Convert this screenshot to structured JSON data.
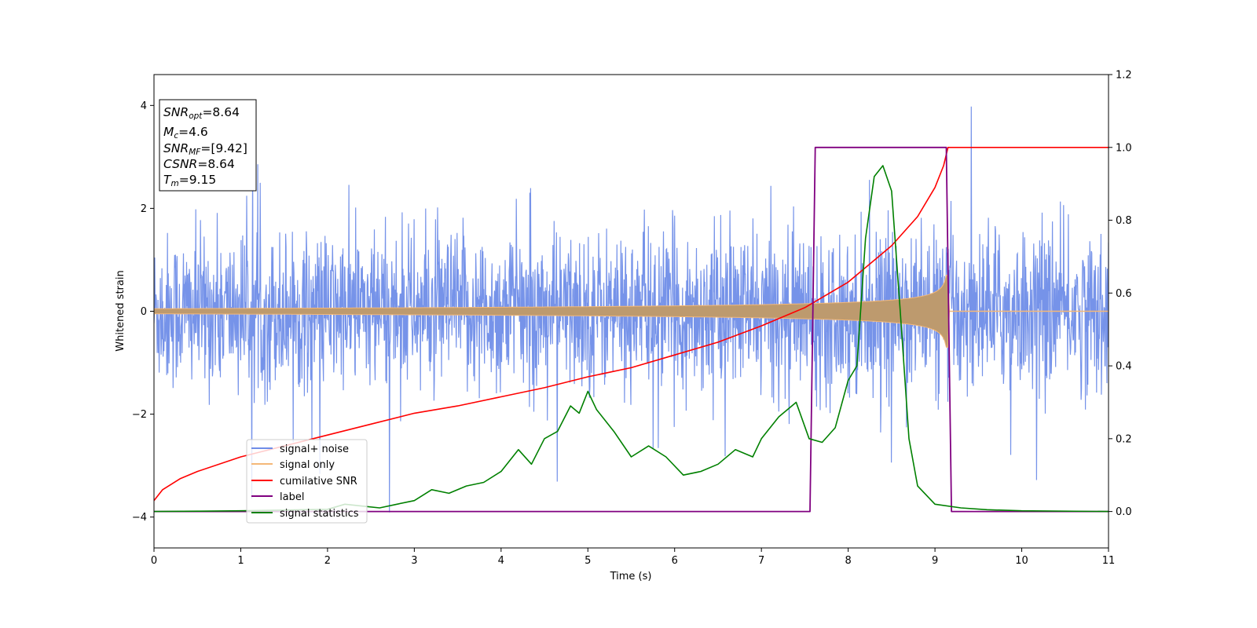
{
  "chart_data": {
    "type": "line",
    "xlabel": "Time (s)",
    "ylabel_left": "Whitened strain",
    "ylabel_right": "",
    "xlim": [
      0,
      11
    ],
    "ylim_left": [
      -4.6,
      4.6
    ],
    "ylim_right": [
      -0.1,
      1.2
    ],
    "x_ticks": [
      "0",
      "1",
      "2",
      "3",
      "4",
      "5",
      "6",
      "7",
      "8",
      "9",
      "10",
      "11"
    ],
    "y_ticks_left": [
      "−4",
      "−2",
      "0",
      "2",
      "4"
    ],
    "y_ticks_right": [
      "0.0",
      "0.2",
      "0.4",
      "0.6",
      "0.8",
      "1.0",
      "1.2"
    ],
    "grid": false,
    "legend_position": "lower-left",
    "info_box": {
      "snr_opt": {
        "base": "SNR",
        "sub": "opt",
        "value": "=8.64"
      },
      "mc": {
        "base": "M",
        "sub": "c",
        "value": "=4.6"
      },
      "snr_mf": {
        "base": "SNR",
        "sub": "MF",
        "value": "=[9.42]"
      },
      "csnr": {
        "base": "CSNR",
        "sub": "",
        "value": "=8.64"
      },
      "tm": {
        "base": "T",
        "sub": "m",
        "value": "=9.15"
      }
    },
    "series": [
      {
        "name": "signal+ noise",
        "color": "#6f8de8",
        "axis": "left",
        "kind": "noise",
        "sigma": 0.75,
        "amplitude_range": [
          -4.1,
          4.2
        ],
        "duration": [
          0,
          11
        ]
      },
      {
        "name": "signal only",
        "color": "#f4b878",
        "axis": "left",
        "kind": "chirp_envelope",
        "amplitude_start": 0.05,
        "amplitude_peak": 0.7,
        "t_merger": 9.15
      },
      {
        "name": "cumilative SNR",
        "color": "#ff0000",
        "axis": "right",
        "x": [
          0,
          0.1,
          0.3,
          0.5,
          1,
          1.5,
          2,
          2.5,
          3,
          3.5,
          4,
          4.5,
          5,
          5.5,
          6,
          6.5,
          7,
          7.5,
          8,
          8.5,
          8.8,
          9,
          9.1,
          9.15,
          9.2,
          10,
          11
        ],
        "y": [
          0.03,
          0.06,
          0.09,
          0.11,
          0.15,
          0.18,
          0.21,
          0.24,
          0.27,
          0.29,
          0.315,
          0.34,
          0.37,
          0.395,
          0.43,
          0.465,
          0.51,
          0.56,
          0.63,
          0.73,
          0.81,
          0.89,
          0.95,
          1.0,
          1.0,
          1.0,
          1.0
        ]
      },
      {
        "name": "label",
        "color": "#800080",
        "axis": "right",
        "x": [
          0,
          7.56,
          7.62,
          9.13,
          9.19,
          11
        ],
        "y": [
          0,
          0,
          1,
          1,
          0,
          0
        ]
      },
      {
        "name": "signal statistics",
        "color": "#008000",
        "axis": "right",
        "x": [
          0,
          0.5,
          1,
          1.5,
          2,
          2.2,
          2.4,
          2.6,
          2.8,
          3,
          3.2,
          3.4,
          3.6,
          3.8,
          4,
          4.2,
          4.35,
          4.5,
          4.65,
          4.8,
          4.9,
          5,
          5.1,
          5.3,
          5.5,
          5.7,
          5.9,
          6.1,
          6.3,
          6.5,
          6.7,
          6.9,
          7,
          7.2,
          7.4,
          7.55,
          7.7,
          7.85,
          8,
          8.1,
          8.2,
          8.3,
          8.4,
          8.5,
          8.6,
          8.7,
          8.8,
          9,
          9.3,
          9.6,
          10,
          11
        ],
        "y": [
          0,
          0.001,
          0.002,
          0.004,
          0.006,
          0.02,
          0.015,
          0.01,
          0.02,
          0.03,
          0.06,
          0.05,
          0.07,
          0.08,
          0.11,
          0.17,
          0.13,
          0.2,
          0.22,
          0.29,
          0.27,
          0.33,
          0.28,
          0.22,
          0.15,
          0.18,
          0.15,
          0.1,
          0.11,
          0.13,
          0.17,
          0.15,
          0.2,
          0.26,
          0.3,
          0.2,
          0.19,
          0.23,
          0.36,
          0.4,
          0.75,
          0.92,
          0.95,
          0.88,
          0.55,
          0.2,
          0.07,
          0.02,
          0.01,
          0.005,
          0.002,
          0.0
        ]
      }
    ]
  }
}
